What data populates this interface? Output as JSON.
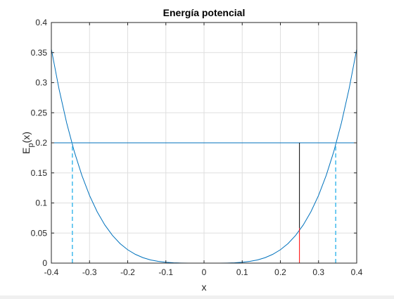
{
  "chart_data": {
    "type": "line",
    "title": "Energía potencial",
    "xlabel": "x",
    "ylabel": "E_p(x)",
    "ylabel_main": "E",
    "ylabel_sub": "p",
    "ylabel_rest": "(x)",
    "xlim": [
      -0.4,
      0.4
    ],
    "ylim": [
      0,
      0.4
    ],
    "grid": true,
    "xticks": [
      -0.4,
      -0.3,
      -0.2,
      -0.1,
      0,
      0.1,
      0.2,
      0.3,
      0.4
    ],
    "xtick_labels": [
      "-0.4",
      "-0.3",
      "-0.2",
      "-0.1",
      "0",
      "0.1",
      "0.2",
      "0.3",
      "0.4"
    ],
    "yticks": [
      0,
      0.05,
      0.1,
      0.15,
      0.2,
      0.25,
      0.3,
      0.35,
      0.4
    ],
    "ytick_labels": [
      "0",
      "0.05",
      "0.1",
      "0.15",
      "0.2",
      "0.25",
      "0.3",
      "0.35",
      "0.4"
    ],
    "series": [
      {
        "style": "solid",
        "color": "#0072bd",
        "x": [
          -0.4,
          -0.38,
          -0.36,
          -0.34,
          -0.32,
          -0.3,
          -0.28,
          -0.26,
          -0.24,
          -0.22,
          -0.2,
          -0.18,
          -0.16,
          -0.14,
          -0.12,
          -0.1,
          -0.08,
          -0.06,
          -0.04,
          -0.02,
          0,
          0.02,
          0.04,
          0.06,
          0.08,
          0.1,
          0.12,
          0.14,
          0.16,
          0.18,
          0.2,
          0.22,
          0.24,
          0.26,
          0.28,
          0.3,
          0.32,
          0.34,
          0.36,
          0.38,
          0.4
        ],
        "y": [
          0.3556,
          0.2897,
          0.2333,
          0.1856,
          0.1457,
          0.1125,
          0.0854,
          0.0635,
          0.0461,
          0.0325,
          0.0222,
          0.0146,
          0.0091,
          0.0053,
          0.0029,
          0.0014,
          0.0006,
          0.0002,
          0.0,
          0.0,
          0.0,
          0.0,
          0.0,
          0.0002,
          0.0006,
          0.0014,
          0.0029,
          0.0053,
          0.0091,
          0.0146,
          0.0222,
          0.0325,
          0.0461,
          0.0635,
          0.0854,
          0.1125,
          0.1457,
          0.1856,
          0.2333,
          0.2897,
          0.3556
        ]
      },
      {
        "style": "solid",
        "color": "#0072bd",
        "x": [
          -0.4,
          0.4
        ],
        "y": [
          0.2,
          0.2
        ]
      },
      {
        "style": "dashed",
        "color": "#4dbeee",
        "x": [
          -0.345,
          -0.345
        ],
        "y": [
          0,
          0.2
        ]
      },
      {
        "style": "dashed",
        "color": "#4dbeee",
        "x": [
          0.345,
          0.345
        ],
        "y": [
          0,
          0.2
        ]
      },
      {
        "style": "solid",
        "color": "#000000",
        "x": [
          0.25,
          0.25
        ],
        "y": [
          0.058,
          0.2
        ]
      },
      {
        "style": "solid",
        "color": "#ff0000",
        "x": [
          0.25,
          0.25
        ],
        "y": [
          0,
          0.058
        ]
      }
    ]
  }
}
